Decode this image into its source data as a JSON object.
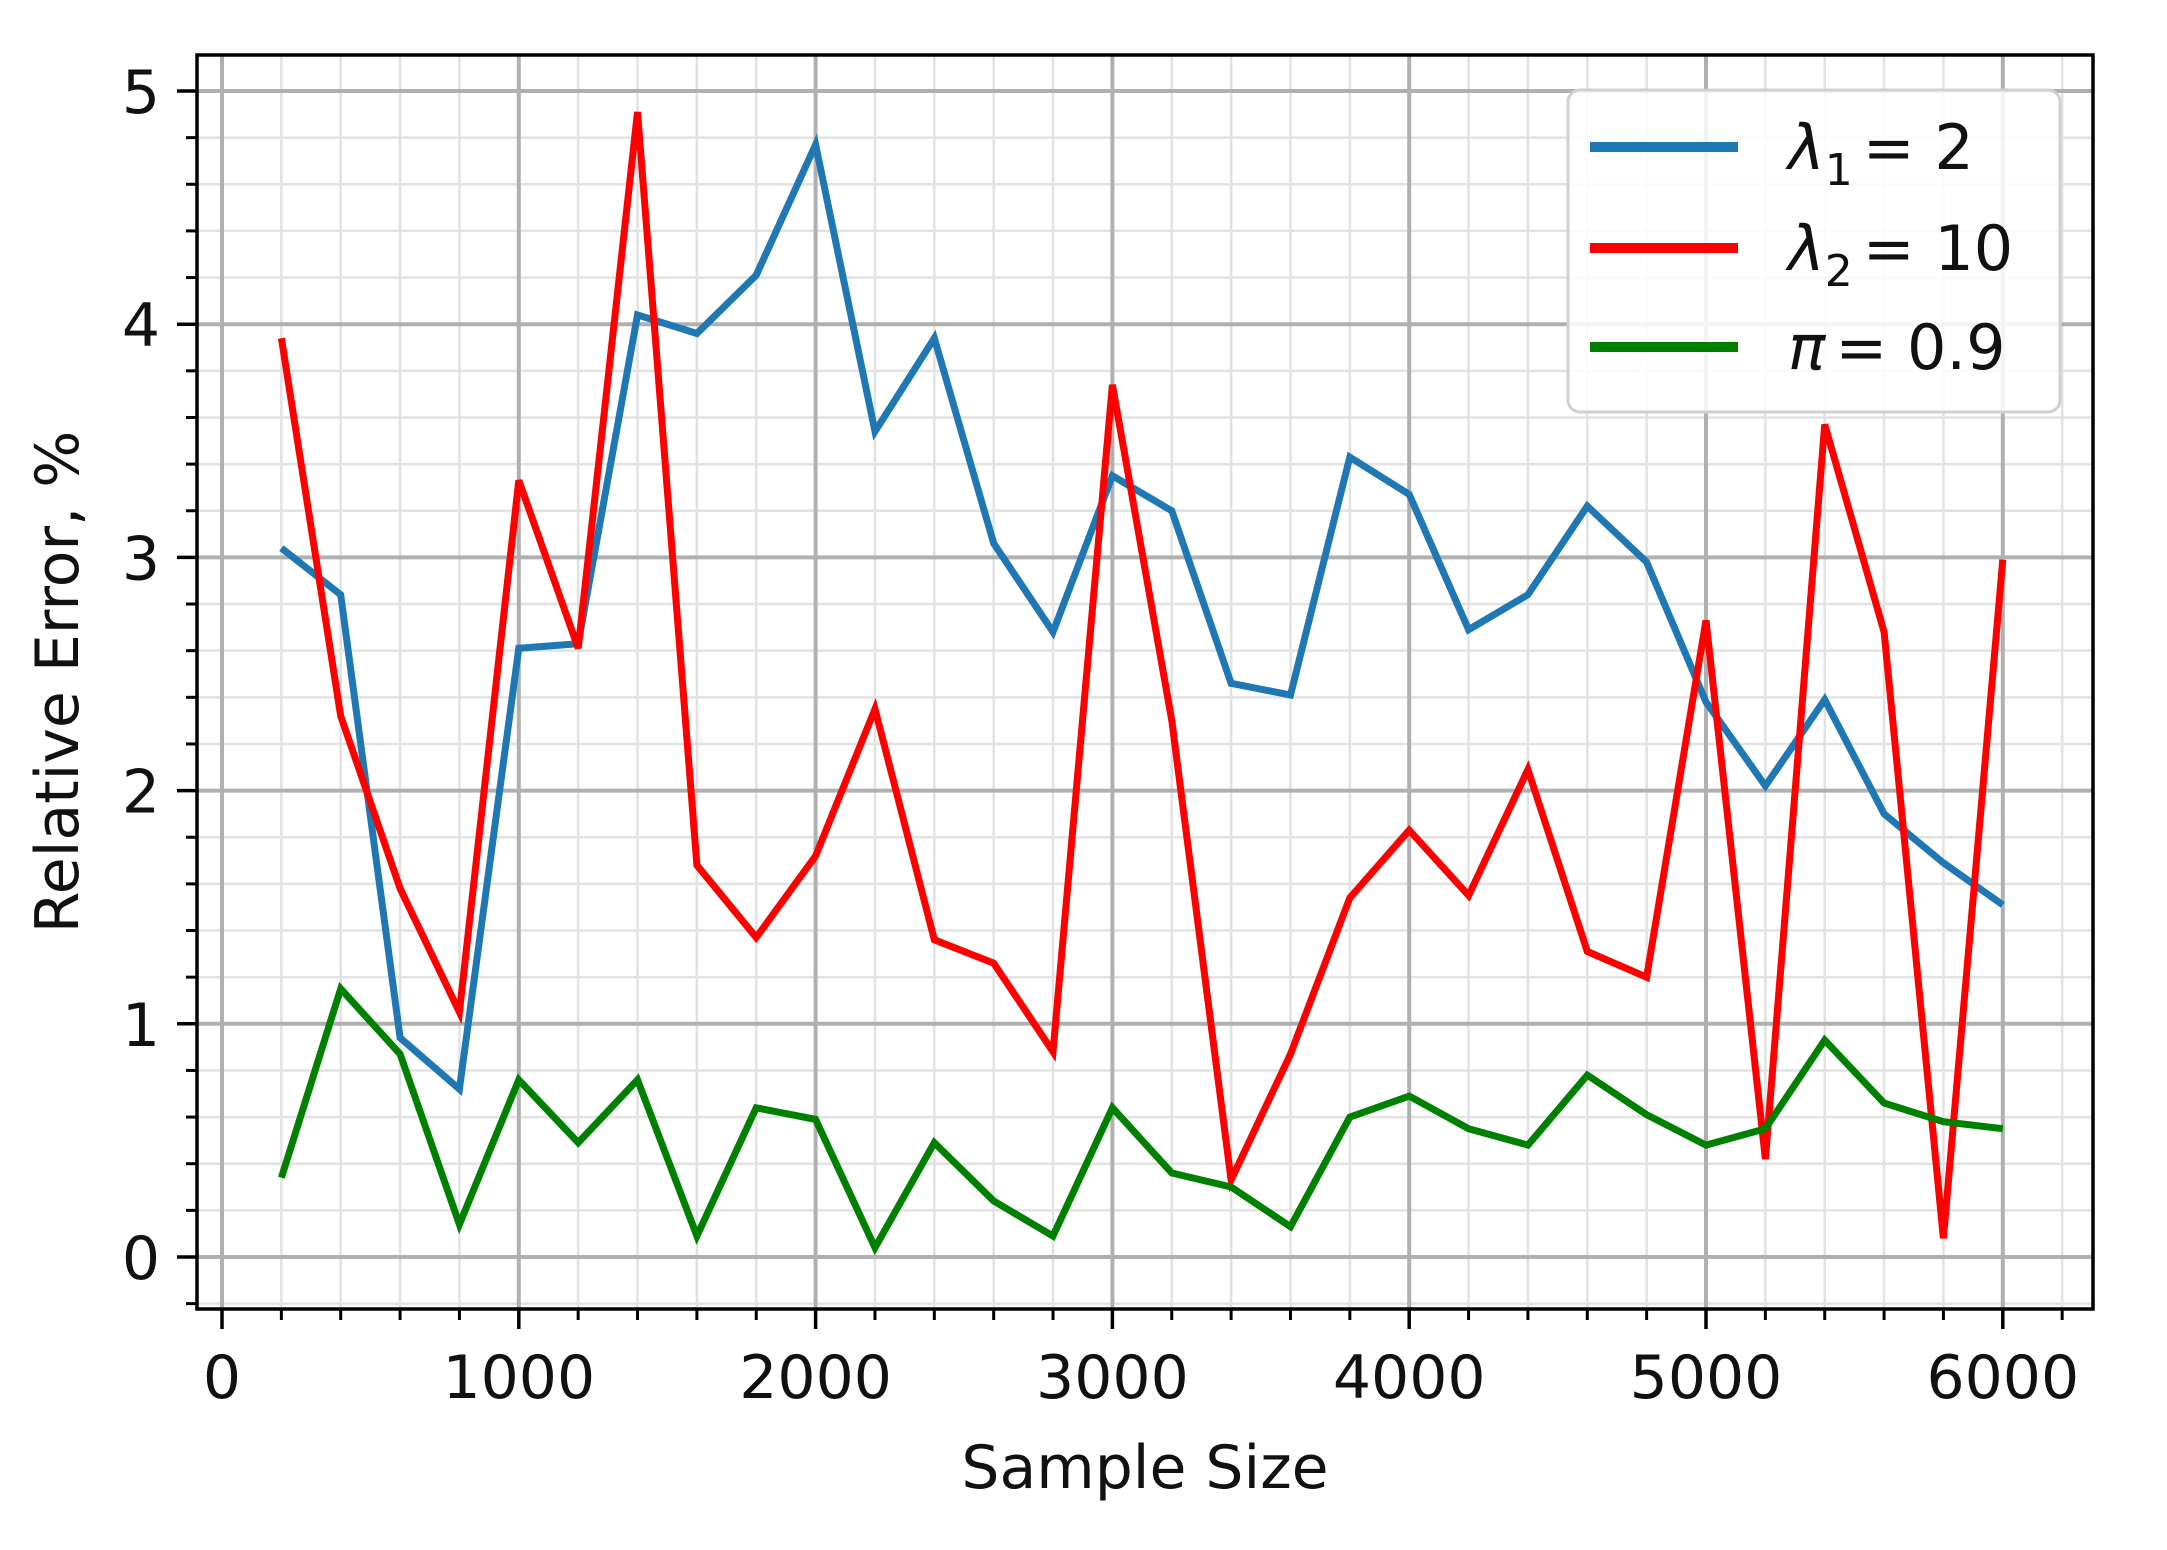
{
  "chart_data": {
    "type": "line",
    "title": "",
    "xlabel": "Sample Size",
    "ylabel": "Relative Error, %",
    "xlim": [
      -100,
      6400
    ],
    "ylim": [
      -0.2,
      5.2
    ],
    "x_ticks": [
      0,
      1000,
      2000,
      3000,
      4000,
      5000,
      6000
    ],
    "x_tick_labels": [
      "0",
      "1000",
      "2000",
      "3000",
      "4000",
      "5000",
      "6000"
    ],
    "y_ticks": [
      0,
      1,
      2,
      3,
      4,
      5
    ],
    "y_tick_labels": [
      "0",
      "1",
      "2",
      "3",
      "4",
      "5"
    ],
    "x_minor_step": 200,
    "y_minor_step": 0.2,
    "grid": true,
    "minor_grid": true,
    "legend_position": "upper right",
    "x": [
      200,
      400,
      600,
      800,
      1000,
      1200,
      1400,
      1600,
      1800,
      2000,
      2200,
      2400,
      2600,
      2800,
      3000,
      3200,
      3400,
      3600,
      3800,
      4000,
      4200,
      4400,
      4600,
      4800,
      5000,
      5200,
      5400,
      5600,
      5800,
      6000
    ],
    "series": [
      {
        "name": "λ1 = 2",
        "symbol": "λ",
        "subscript": "1",
        "value_text": "= 2",
        "color": "#1f77b4",
        "values": [
          3.04,
          2.84,
          0.94,
          0.72,
          2.61,
          2.63,
          4.04,
          3.96,
          4.21,
          4.77,
          3.54,
          3.94,
          3.06,
          2.68,
          3.35,
          3.2,
          2.46,
          2.41,
          3.43,
          3.27,
          2.69,
          2.84,
          3.22,
          2.98,
          2.38,
          2.02,
          2.39,
          1.9,
          1.69,
          1.51
        ]
      },
      {
        "name": "λ2 = 10",
        "symbol": "λ",
        "subscript": "2",
        "value_text": "= 10",
        "color": "#ff0000",
        "values": [
          3.94,
          2.32,
          1.58,
          1.05,
          3.33,
          2.61,
          4.91,
          1.68,
          1.37,
          1.72,
          2.35,
          1.36,
          1.26,
          0.88,
          3.74,
          2.3,
          0.33,
          0.87,
          1.54,
          1.83,
          1.55,
          2.09,
          1.31,
          1.2,
          2.73,
          0.42,
          3.57,
          2.68,
          0.08,
          2.99
        ]
      },
      {
        "name": "π = 0.9",
        "symbol": "π",
        "subscript": "",
        "value_text": "= 0.9",
        "color": "#008000",
        "values": [
          0.34,
          1.15,
          0.87,
          0.14,
          0.76,
          0.49,
          0.76,
          0.09,
          0.64,
          0.59,
          0.04,
          0.49,
          0.24,
          0.09,
          0.64,
          0.36,
          0.3,
          0.13,
          0.6,
          0.69,
          0.55,
          0.48,
          0.78,
          0.61,
          0.48,
          0.55,
          0.93,
          0.66,
          0.58,
          0.55
        ]
      }
    ]
  }
}
